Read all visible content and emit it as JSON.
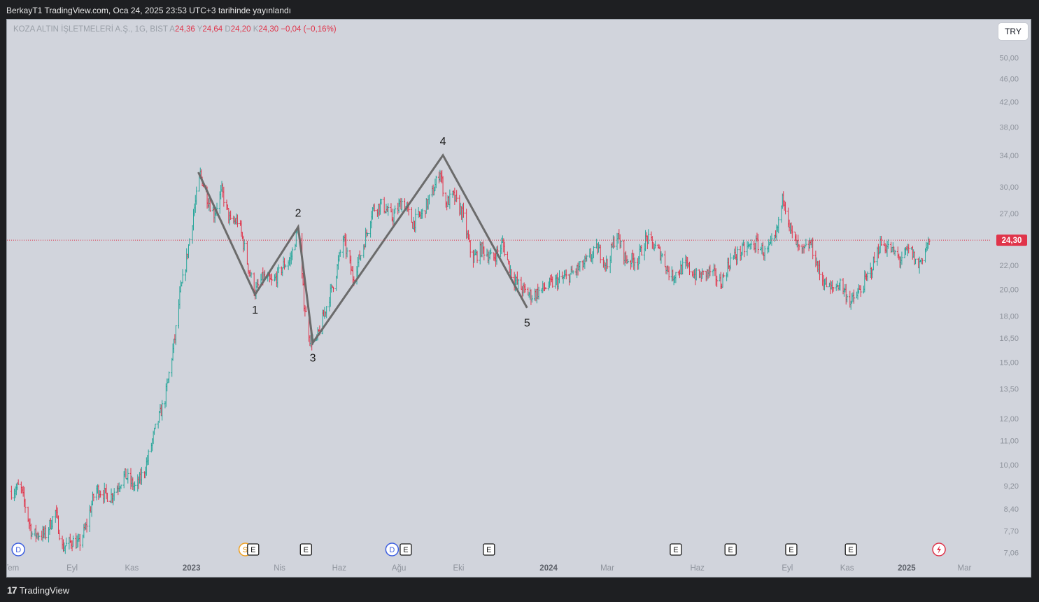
{
  "header": {
    "text": "BerkayT1 TradingView.com, Oca 24, 2025 23:53 UTC+3 tarihinde yayınlandı"
  },
  "legend": {
    "symbol": "KOZA ALTIN İŞLETMELERİ A.Ş., 1G, BIST",
    "open_label": "A",
    "open": "24,36",
    "high_label": "Y",
    "high": "24,64",
    "low_label": "D",
    "low": "24,20",
    "close_label": "K",
    "close": "24,30",
    "change": "−0,04 (−0,16%)"
  },
  "currency_button": "TRY",
  "footer": {
    "logo_mark": "17",
    "logo_text": "TradingView"
  },
  "colors": {
    "up": "#26a69a",
    "down": "#e0344a",
    "pattern_line": "#6b6b6b",
    "price_line": "#e0344a",
    "background": "#d1d4dc",
    "page": "#1e1f22"
  },
  "chart_data": {
    "type": "candlestick",
    "y_scale": "log",
    "ylim": [
      6.9,
      53.5
    ],
    "last_price": 24.3,
    "last_price_label": "24,30",
    "y_ticks": [
      {
        "value": 50.0,
        "label": "50,00"
      },
      {
        "value": 46.0,
        "label": "46,00"
      },
      {
        "value": 42.0,
        "label": "42,00"
      },
      {
        "value": 38.0,
        "label": "38,00"
      },
      {
        "value": 34.0,
        "label": "34,00"
      },
      {
        "value": 30.0,
        "label": "30,00"
      },
      {
        "value": 27.0,
        "label": "27,00"
      },
      {
        "value": 24.3,
        "label": "24,30"
      },
      {
        "value": 22.0,
        "label": "22,00"
      },
      {
        "value": 20.0,
        "label": "20,00"
      },
      {
        "value": 18.0,
        "label": "18,00"
      },
      {
        "value": 16.5,
        "label": "16,50"
      },
      {
        "value": 15.0,
        "label": "15,00"
      },
      {
        "value": 13.5,
        "label": "13,50"
      },
      {
        "value": 12.0,
        "label": "12,00"
      },
      {
        "value": 11.0,
        "label": "11,00"
      },
      {
        "value": 10.0,
        "label": "10,00"
      },
      {
        "value": 9.2,
        "label": "9,20"
      },
      {
        "value": 8.4,
        "label": "8,40"
      },
      {
        "value": 7.7,
        "label": "7,70"
      },
      {
        "value": 7.06,
        "label": "7,06"
      }
    ],
    "x_ticks": [
      {
        "date": "2022-07-01",
        "label": "Tem"
      },
      {
        "date": "2022-09-01",
        "label": "Eyl"
      },
      {
        "date": "2022-11-01",
        "label": "Kas"
      },
      {
        "date": "2023-01-01",
        "label": "2023"
      },
      {
        "date": "2023-04-01",
        "label": "Nis"
      },
      {
        "date": "2023-06-01",
        "label": "Haz"
      },
      {
        "date": "2023-08-01",
        "label": "Ağu"
      },
      {
        "date": "2023-10-01",
        "label": "Eki"
      },
      {
        "date": "2024-01-01",
        "label": "2024"
      },
      {
        "date": "2024-03-01",
        "label": "Mar"
      },
      {
        "date": "2024-06-01",
        "label": "Haz"
      },
      {
        "date": "2024-09-01",
        "label": "Eyl"
      },
      {
        "date": "2024-11-01",
        "label": "Kas"
      },
      {
        "date": "2025-01-01",
        "label": "2025"
      },
      {
        "date": "2025-03-01",
        "label": "Mar"
      }
    ],
    "price_path": [
      [
        "2022-07-01",
        9.0
      ],
      [
        "2022-07-10",
        9.2
      ],
      [
        "2022-07-22",
        7.6
      ],
      [
        "2022-08-05",
        7.6
      ],
      [
        "2022-08-15",
        8.3
      ],
      [
        "2022-08-22",
        7.2
      ],
      [
        "2022-09-01",
        7.4
      ],
      [
        "2022-09-08",
        7.3
      ],
      [
        "2022-09-15",
        7.8
      ],
      [
        "2022-09-25",
        9.1
      ],
      [
        "2022-10-10",
        8.8
      ],
      [
        "2022-10-25",
        9.6
      ],
      [
        "2022-11-05",
        9.1
      ],
      [
        "2022-11-15",
        9.9
      ],
      [
        "2022-11-25",
        11.5
      ],
      [
        "2022-12-05",
        13.0
      ],
      [
        "2022-12-15",
        16.5
      ],
      [
        "2022-12-20",
        19.5
      ],
      [
        "2022-12-26",
        22.0
      ],
      [
        "2023-01-03",
        27.0
      ],
      [
        "2023-01-10",
        31.5
      ],
      [
        "2023-01-18",
        28.5
      ],
      [
        "2023-01-24",
        27.0
      ],
      [
        "2023-02-01",
        29.5
      ],
      [
        "2023-02-10",
        26.0
      ],
      [
        "2023-02-18",
        26.3
      ],
      [
        "2023-03-01",
        21.5
      ],
      [
        "2023-03-07",
        19.8
      ],
      [
        "2023-03-15",
        21.0
      ],
      [
        "2023-03-25",
        20.5
      ],
      [
        "2023-04-05",
        22.0
      ],
      [
        "2023-04-12",
        22.5
      ],
      [
        "2023-04-20",
        25.5
      ],
      [
        "2023-04-26",
        19.0
      ],
      [
        "2023-05-02",
        16.5
      ],
      [
        "2023-05-08",
        16.2
      ],
      [
        "2023-05-18",
        18.5
      ],
      [
        "2023-05-28",
        21.0
      ],
      [
        "2023-06-05",
        24.5
      ],
      [
        "2023-06-15",
        21.0
      ],
      [
        "2023-06-25",
        23.5
      ],
      [
        "2023-07-05",
        27.5
      ],
      [
        "2023-07-15",
        28.0
      ],
      [
        "2023-07-25",
        26.5
      ],
      [
        "2023-08-05",
        28.5
      ],
      [
        "2023-08-15",
        26.0
      ],
      [
        "2023-08-25",
        27.0
      ],
      [
        "2023-09-05",
        29.5
      ],
      [
        "2023-09-12",
        32.0
      ],
      [
        "2023-09-18",
        28.0
      ],
      [
        "2023-09-25",
        29.0
      ],
      [
        "2023-10-05",
        27.0
      ],
      [
        "2023-10-15",
        22.5
      ],
      [
        "2023-10-25",
        23.5
      ],
      [
        "2023-11-05",
        22.5
      ],
      [
        "2023-11-15",
        24.0
      ],
      [
        "2023-11-25",
        21.0
      ],
      [
        "2023-12-05",
        20.0
      ],
      [
        "2023-12-15",
        19.5
      ],
      [
        "2023-12-25",
        20.0
      ],
      [
        "2024-01-05",
        20.5
      ],
      [
        "2024-01-20",
        21.0
      ],
      [
        "2024-02-05",
        22.0
      ],
      [
        "2024-02-20",
        23.5
      ],
      [
        "2024-03-01",
        22.0
      ],
      [
        "2024-03-10",
        25.0
      ],
      [
        "2024-03-20",
        22.5
      ],
      [
        "2024-04-01",
        22.5
      ],
      [
        "2024-04-10",
        24.5
      ],
      [
        "2024-04-25",
        23.0
      ],
      [
        "2024-05-05",
        21.0
      ],
      [
        "2024-05-20",
        22.0
      ],
      [
        "2024-06-01",
        21.0
      ],
      [
        "2024-06-15",
        21.5
      ],
      [
        "2024-06-25",
        20.5
      ],
      [
        "2024-07-05",
        22.5
      ],
      [
        "2024-07-20",
        23.5
      ],
      [
        "2024-08-01",
        24.0
      ],
      [
        "2024-08-10",
        23.0
      ],
      [
        "2024-08-20",
        24.5
      ],
      [
        "2024-08-28",
        29.0
      ],
      [
        "2024-09-05",
        25.0
      ],
      [
        "2024-09-15",
        23.0
      ],
      [
        "2024-09-25",
        24.0
      ],
      [
        "2024-10-05",
        21.0
      ],
      [
        "2024-10-15",
        20.0
      ],
      [
        "2024-10-25",
        20.5
      ],
      [
        "2024-11-05",
        19.0
      ],
      [
        "2024-11-15",
        20.0
      ],
      [
        "2024-11-25",
        21.5
      ],
      [
        "2024-12-05",
        24.0
      ],
      [
        "2024-12-15",
        23.5
      ],
      [
        "2024-12-25",
        22.5
      ],
      [
        "2025-01-05",
        23.5
      ],
      [
        "2025-01-12",
        21.8
      ],
      [
        "2025-01-24",
        24.3
      ]
    ],
    "pattern": {
      "points": [
        {
          "date": "2023-01-08",
          "price": 31.8,
          "label": ""
        },
        {
          "date": "2023-03-07",
          "price": 19.6,
          "label": "1"
        },
        {
          "date": "2023-04-20",
          "price": 25.6,
          "label": "2"
        },
        {
          "date": "2023-05-05",
          "price": 16.2,
          "label": "3"
        },
        {
          "date": "2023-09-15",
          "price": 34.0,
          "label": "4"
        },
        {
          "date": "2023-12-10",
          "price": 18.6,
          "label": "5"
        }
      ]
    },
    "events": [
      {
        "date": "2022-07-08",
        "type": "D"
      },
      {
        "date": "2023-02-25",
        "type": "S"
      },
      {
        "date": "2023-03-05",
        "type": "E"
      },
      {
        "date": "2023-04-28",
        "type": "E"
      },
      {
        "date": "2023-07-25",
        "type": "D"
      },
      {
        "date": "2023-08-08",
        "type": "E"
      },
      {
        "date": "2023-11-01",
        "type": "E"
      },
      {
        "date": "2024-05-10",
        "type": "E"
      },
      {
        "date": "2024-07-05",
        "type": "E"
      },
      {
        "date": "2024-09-05",
        "type": "E"
      },
      {
        "date": "2024-11-05",
        "type": "E"
      },
      {
        "date": "2025-02-03",
        "type": "flash"
      }
    ]
  }
}
